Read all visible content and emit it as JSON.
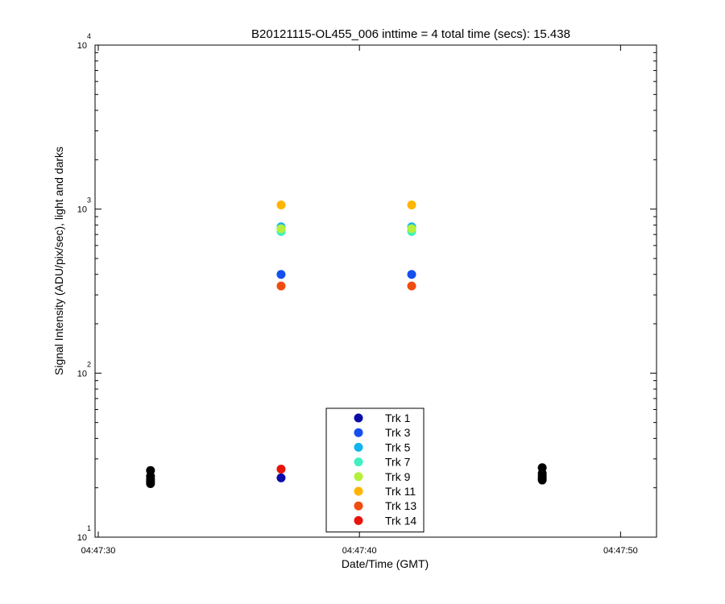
{
  "chart_data": {
    "type": "scatter",
    "title": "B20121115-OL455_006 inttime = 4 total time (secs): 15.438",
    "xlabel": "Date/Time (GMT)",
    "ylabel": "Signal Intensity (ADU/pix/sec), light and darks",
    "x_scale": "time",
    "y_scale": "log",
    "xlim": [
      "04:47:30",
      "04:47:51.5"
    ],
    "ylim": [
      10,
      10000
    ],
    "x_ticks": [
      "04:47:30",
      "04:47:40",
      "04:47:50"
    ],
    "y_ticks": [
      {
        "value": 10,
        "base": "10",
        "exp": "1"
      },
      {
        "value": 100,
        "base": "10",
        "exp": "2"
      },
      {
        "value": 1000,
        "base": "10",
        "exp": "3"
      },
      {
        "value": 10000,
        "base": "10",
        "exp": "4"
      }
    ],
    "grid": false,
    "legend_position": "bottom-center",
    "series": [
      {
        "name": "Trk 1",
        "color": "#0a0aa8",
        "points": [
          {
            "x": "04:47:37",
            "y": 23
          },
          {
            "x": "04:47:42",
            "y": 23
          }
        ]
      },
      {
        "name": "Trk 3",
        "color": "#1450f0",
        "points": [
          {
            "x": "04:47:37",
            "y": 400
          },
          {
            "x": "04:47:42",
            "y": 400
          }
        ]
      },
      {
        "name": "Trk 5",
        "color": "#10b4ef",
        "points": [
          {
            "x": "04:47:37",
            "y": 780
          },
          {
            "x": "04:47:42",
            "y": 780
          }
        ]
      },
      {
        "name": "Trk 7",
        "color": "#40f0c0",
        "points": [
          {
            "x": "04:47:37",
            "y": 730
          },
          {
            "x": "04:47:42",
            "y": 730
          }
        ]
      },
      {
        "name": "Trk 9",
        "color": "#b4f03c",
        "points": [
          {
            "x": "04:47:37",
            "y": 760
          },
          {
            "x": "04:47:42",
            "y": 760
          }
        ]
      },
      {
        "name": "Trk 11",
        "color": "#ffb400",
        "points": [
          {
            "x": "04:47:37",
            "y": 1060
          },
          {
            "x": "04:47:42",
            "y": 1060
          }
        ]
      },
      {
        "name": "Trk 13",
        "color": "#f04c10",
        "points": [
          {
            "x": "04:47:37",
            "y": 340
          },
          {
            "x": "04:47:42",
            "y": 340
          }
        ]
      },
      {
        "name": "Trk 14",
        "color": "#e6140a",
        "points": [
          {
            "x": "04:47:37",
            "y": 26
          },
          {
            "x": "04:47:42",
            "y": 26
          }
        ]
      }
    ],
    "darks": {
      "color": "#000000",
      "points": [
        {
          "x": "04:47:32",
          "y": 25.5
        },
        {
          "x": "04:47:32",
          "y": 23.5
        },
        {
          "x": "04:47:32",
          "y": 22.5
        },
        {
          "x": "04:47:32",
          "y": 21.8
        },
        {
          "x": "04:47:32",
          "y": 21.2
        },
        {
          "x": "04:47:47",
          "y": 26.5
        },
        {
          "x": "04:47:47",
          "y": 24.5
        },
        {
          "x": "04:47:47",
          "y": 23.5
        },
        {
          "x": "04:47:47",
          "y": 22.8
        },
        {
          "x": "04:47:47",
          "y": 22.3
        }
      ]
    }
  }
}
